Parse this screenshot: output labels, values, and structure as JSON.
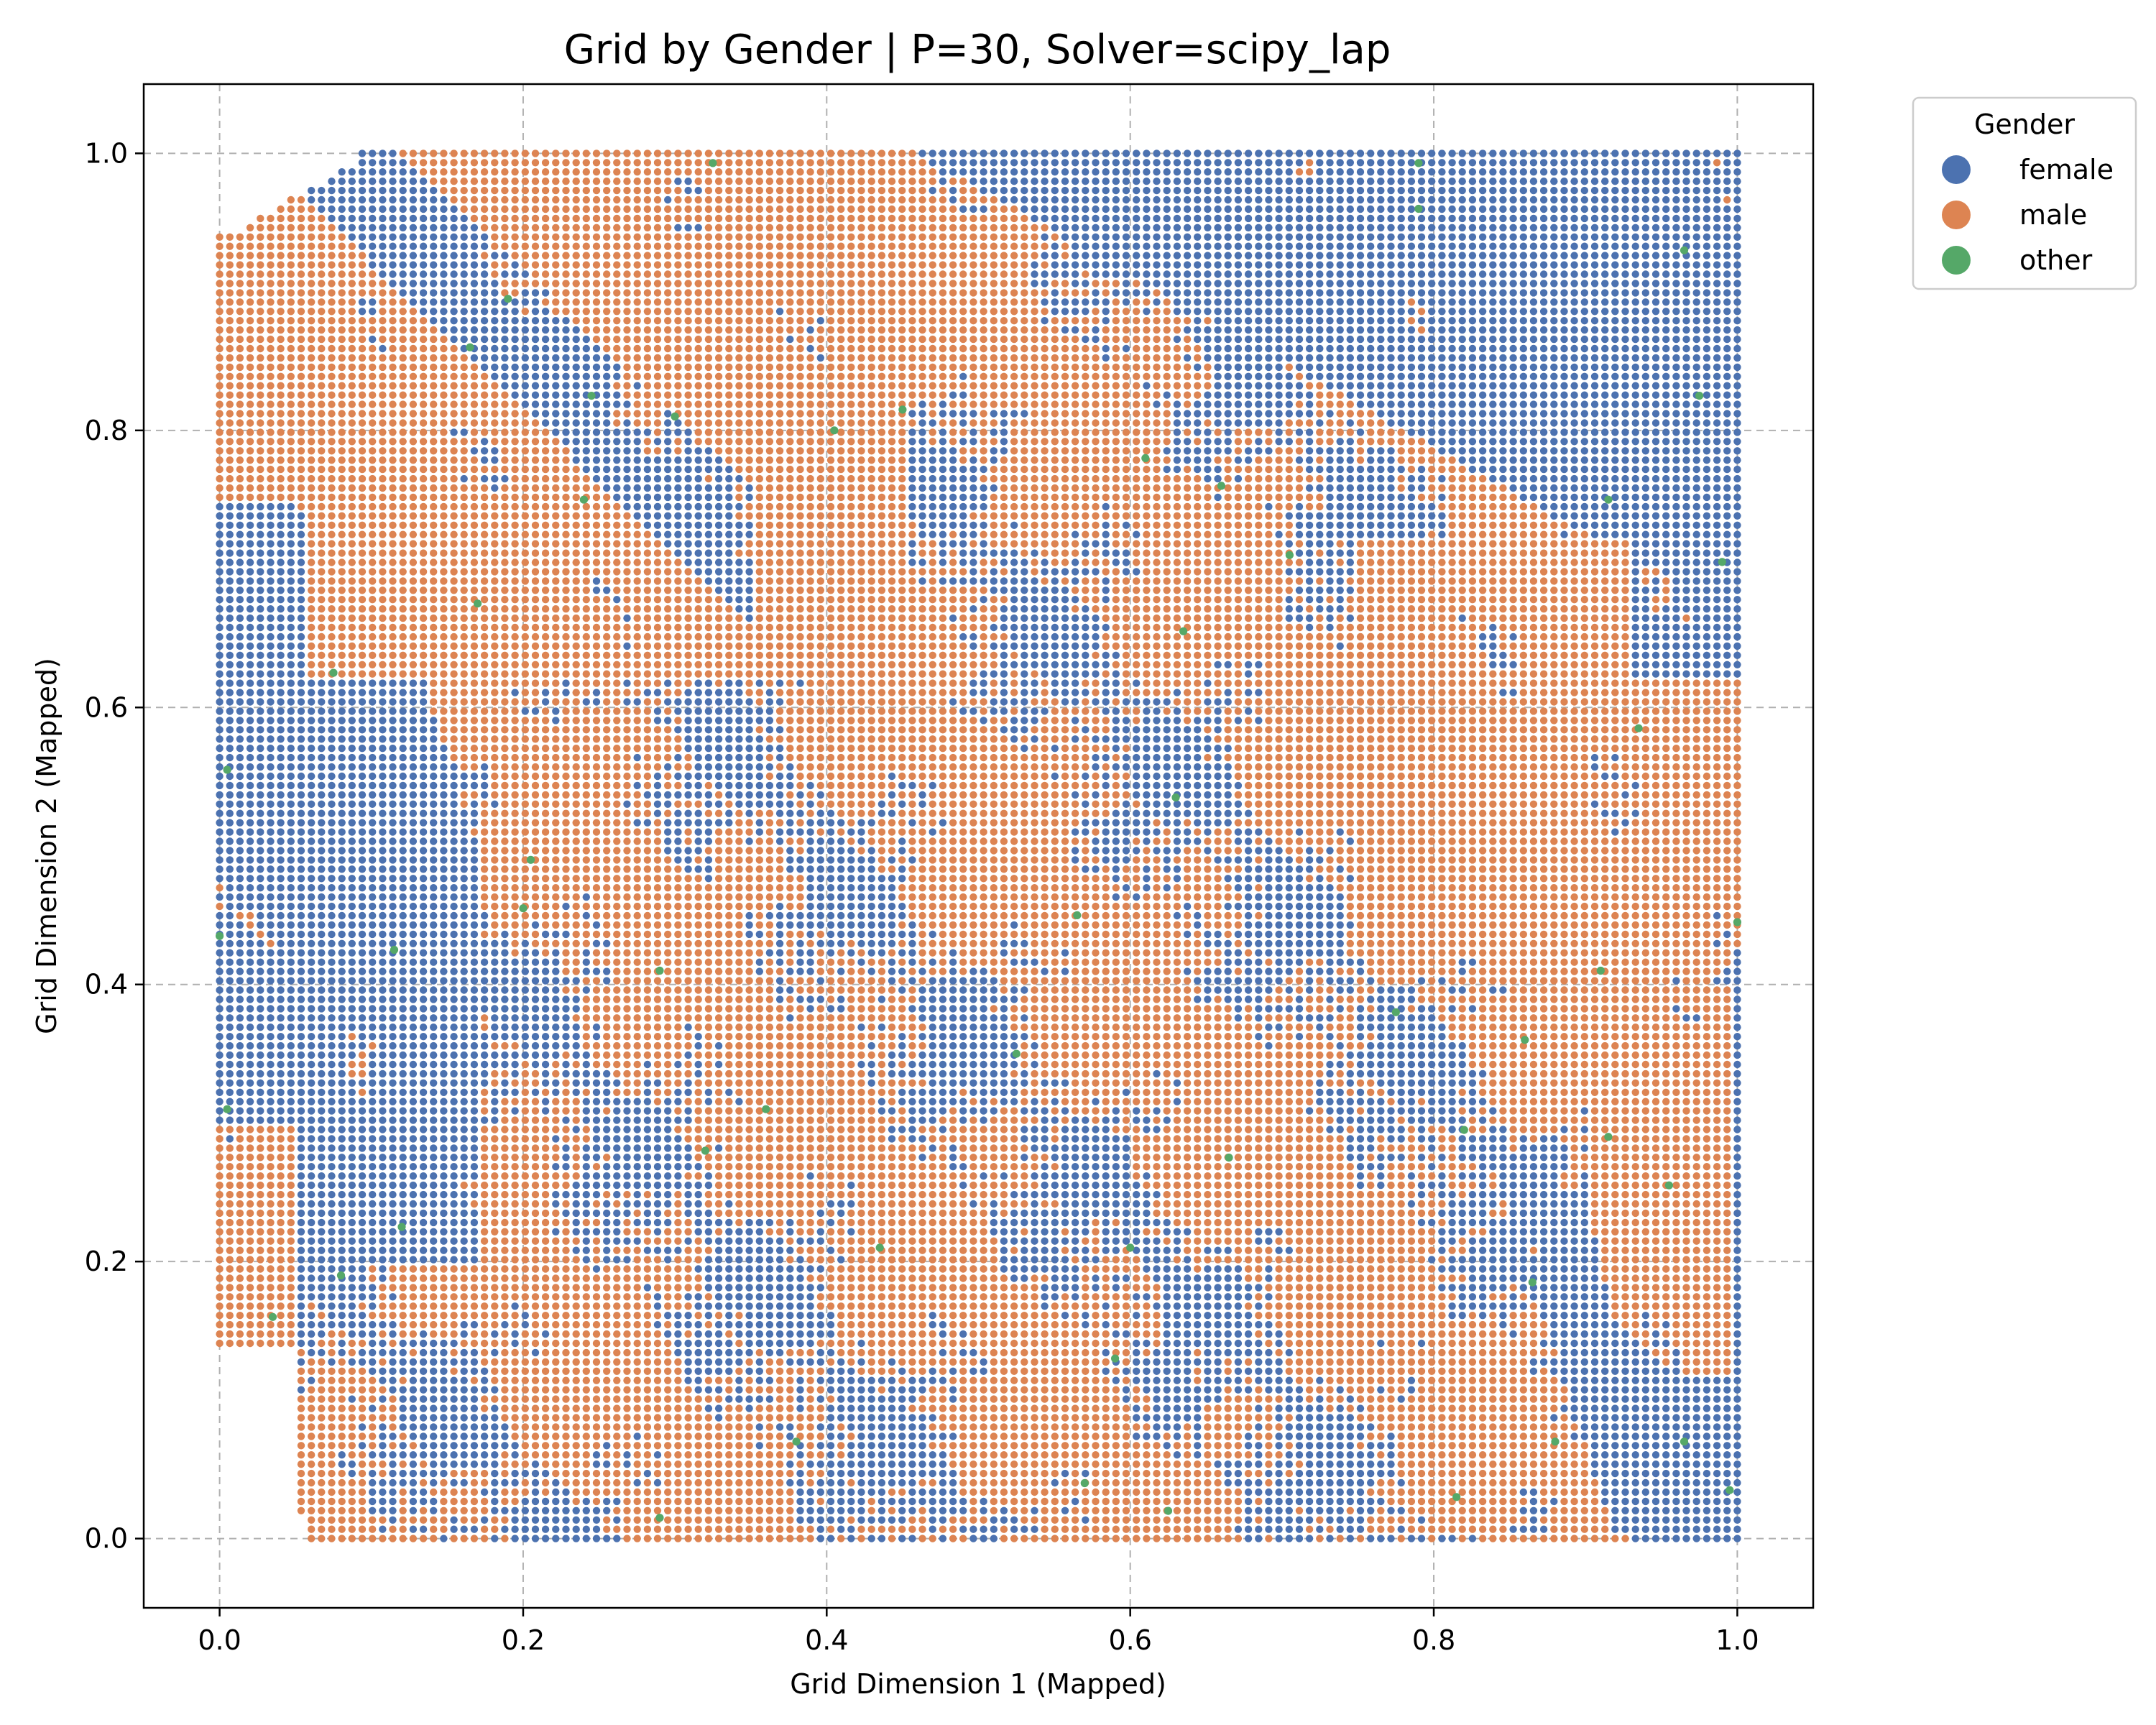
{
  "chart_data": {
    "type": "scatter",
    "title": "Grid by Gender | P=30, Solver=scipy_lap",
    "xlabel": "Grid Dimension 1 (Mapped)",
    "ylabel": "Grid Dimension 2 (Mapped)",
    "xlim": [
      -0.05,
      1.05
    ],
    "ylim": [
      -0.05,
      1.05
    ],
    "xticks": [
      "0.0",
      "0.2",
      "0.4",
      "0.6",
      "0.8",
      "1.0"
    ],
    "yticks": [
      "0.0",
      "0.2",
      "0.4",
      "0.6",
      "0.8",
      "1.0"
    ],
    "xtick_values": [
      0.0,
      0.2,
      0.4,
      0.6,
      0.8,
      1.0
    ],
    "ytick_values": [
      0.0,
      0.2,
      0.4,
      0.6,
      0.8,
      1.0
    ],
    "grid": true,
    "legend": {
      "title": "Gender",
      "placement": "outside-top-right"
    },
    "series": [
      {
        "name": "female",
        "color": "#4c72b0"
      },
      {
        "name": "male",
        "color": "#dd8452"
      },
      {
        "name": "other",
        "color": "#55a868"
      }
    ],
    "grid_cells": 150,
    "regions": [
      {
        "series": "female",
        "note": "dense band along top-right",
        "x": [
          0.46,
          1.0
        ],
        "y": [
          0.72,
          1.0
        ]
      },
      {
        "series": "female",
        "note": "dense band along left edge",
        "x": [
          0.0,
          0.17
        ],
        "y": [
          0.18,
          0.75
        ]
      },
      {
        "series": "female",
        "note": "diagonal band bottom-right",
        "x": [
          0.8,
          1.0
        ],
        "y": [
          0.0,
          0.4
        ]
      },
      {
        "series": "male",
        "note": "large region upper-left / center",
        "x": [
          0.0,
          0.8
        ],
        "y": [
          0.45,
          1.0
        ]
      },
      {
        "series": "male",
        "note": "region right-middle",
        "x": [
          0.8,
          1.0
        ],
        "y": [
          0.4,
          0.7
        ]
      }
    ],
    "other_points": [
      [
        0.325,
        0.993
      ],
      [
        0.79,
        0.993
      ],
      [
        0.79,
        0.96
      ],
      [
        0.965,
        0.93
      ],
      [
        0.19,
        0.895
      ],
      [
        0.165,
        0.86
      ],
      [
        0.245,
        0.825
      ],
      [
        0.3,
        0.81
      ],
      [
        0.45,
        0.815
      ],
      [
        0.975,
        0.825
      ],
      [
        0.405,
        0.8
      ],
      [
        0.61,
        0.78
      ],
      [
        0.66,
        0.76
      ],
      [
        0.24,
        0.75
      ],
      [
        0.915,
        0.75
      ],
      [
        0.705,
        0.71
      ],
      [
        0.99,
        0.705
      ],
      [
        0.17,
        0.675
      ],
      [
        0.635,
        0.655
      ],
      [
        0.075,
        0.625
      ],
      [
        0.935,
        0.585
      ],
      [
        0.005,
        0.555
      ],
      [
        0.63,
        0.535
      ],
      [
        0.205,
        0.49
      ],
      [
        0.2,
        0.455
      ],
      [
        0.565,
        0.45
      ],
      [
        1.0,
        0.445
      ],
      [
        0.0,
        0.435
      ],
      [
        0.115,
        0.425
      ],
      [
        0.29,
        0.41
      ],
      [
        0.91,
        0.41
      ],
      [
        0.775,
        0.38
      ],
      [
        0.525,
        0.35
      ],
      [
        0.86,
        0.36
      ],
      [
        0.005,
        0.31
      ],
      [
        0.36,
        0.31
      ],
      [
        0.82,
        0.295
      ],
      [
        0.915,
        0.29
      ],
      [
        0.32,
        0.28
      ],
      [
        0.665,
        0.275
      ],
      [
        0.955,
        0.255
      ],
      [
        0.12,
        0.225
      ],
      [
        0.435,
        0.21
      ],
      [
        0.6,
        0.21
      ],
      [
        0.865,
        0.185
      ],
      [
        0.08,
        0.19
      ],
      [
        0.035,
        0.16
      ],
      [
        0.59,
        0.13
      ],
      [
        0.38,
        0.07
      ],
      [
        0.88,
        0.07
      ],
      [
        0.965,
        0.07
      ],
      [
        0.57,
        0.04
      ],
      [
        0.815,
        0.03
      ],
      [
        0.625,
        0.02
      ],
      [
        0.29,
        0.015
      ],
      [
        0.995,
        0.035
      ]
    ]
  }
}
